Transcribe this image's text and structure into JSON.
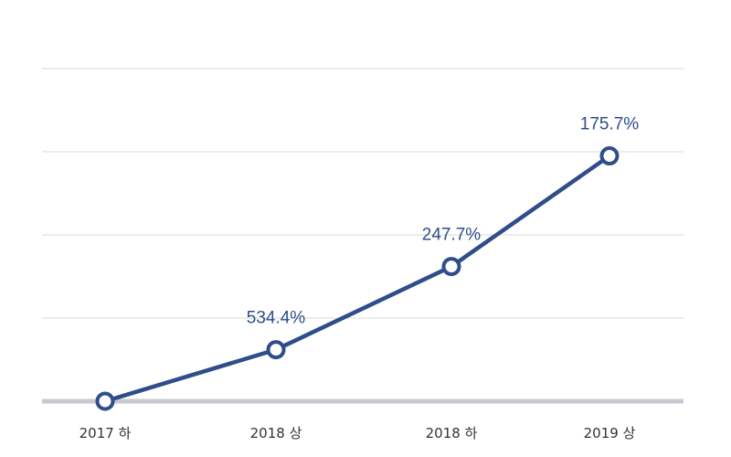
{
  "chart_data": {
    "type": "line",
    "categories": [
      "2017 하",
      "2018 상",
      "2018 하",
      "2019 상"
    ],
    "series": [
      {
        "values": [
          0,
          62,
          162,
          295
        ],
        "data_labels": [
          "",
          "534.4%",
          "247.7%",
          "175.7%"
        ]
      }
    ],
    "ylim": [
      0,
      400
    ],
    "grid": true,
    "colors": {
      "line": "#2e4d8a",
      "grid": "#d9d9d9",
      "baseline": "#c8c8d0"
    }
  }
}
